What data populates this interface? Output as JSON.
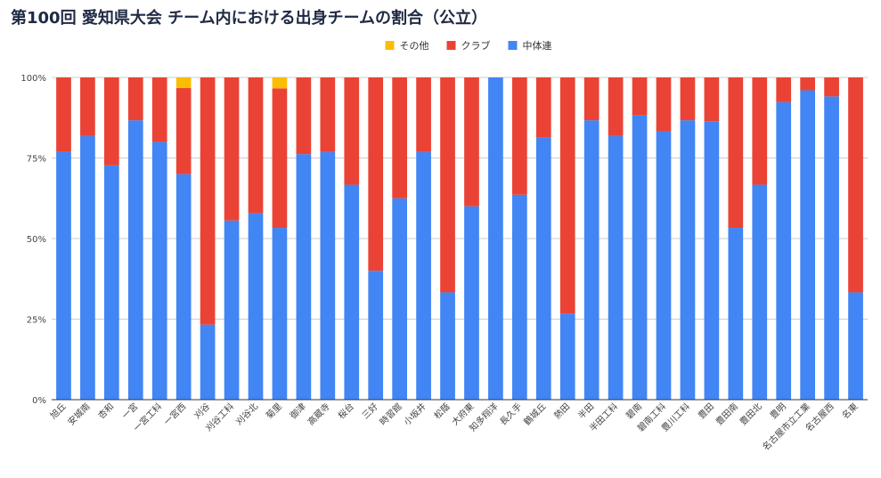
{
  "chart_data": {
    "type": "bar",
    "stacked": true,
    "normalized": true,
    "title": "第100回 愛知県大会 チーム内における出身チームの割合（公立）",
    "y_ticks": [
      "0%",
      "25%",
      "50%",
      "75%",
      "100%"
    ],
    "ylim": [
      0,
      100
    ],
    "grid": true,
    "legend_position": "top",
    "categories": [
      "旭丘",
      "安城南",
      "杏和",
      "一宮",
      "一宮工科",
      "一宮西",
      "刈谷",
      "刈谷工科",
      "刈谷北",
      "菊里",
      "御津",
      "高蔵寺",
      "桜台",
      "三好",
      "時習館",
      "小坂井",
      "松蔭",
      "大府東",
      "知多翔洋",
      "長久手",
      "鶴城丘",
      "熱田",
      "半田",
      "半田工科",
      "碧南",
      "碧南工科",
      "豊川工科",
      "豊田",
      "豊田南",
      "豊田北",
      "豊明",
      "名古屋市立工業",
      "名古屋西",
      "名東"
    ],
    "series": [
      {
        "name": "中体連",
        "color": "#4285f4",
        "values": [
          76.9,
          81.8,
          72.7,
          86.7,
          80.0,
          70.0,
          23.3,
          55.6,
          57.9,
          53.3,
          76.2,
          76.9,
          66.7,
          40.0,
          62.5,
          76.9,
          33.3,
          60.0,
          100,
          63.6,
          81.3,
          26.7,
          86.7,
          81.8,
          88.2,
          83.3,
          86.7,
          86.4,
          53.3,
          66.7,
          92.3,
          96.0,
          94.1,
          33.3
        ]
      },
      {
        "name": "クラブ",
        "color": "#ea4335",
        "values": [
          23.1,
          18.2,
          27.3,
          13.3,
          20.0,
          26.7,
          76.7,
          44.4,
          42.1,
          43.3,
          23.8,
          23.1,
          33.3,
          60.0,
          37.5,
          23.1,
          66.7,
          40.0,
          0,
          36.4,
          18.7,
          73.3,
          13.3,
          18.2,
          11.8,
          16.7,
          13.3,
          13.6,
          46.7,
          33.3,
          7.7,
          4.0,
          5.9,
          66.7
        ]
      },
      {
        "name": "その他",
        "color": "#fbbc04",
        "values": [
          0,
          0,
          0,
          0,
          0,
          3.3,
          0,
          0,
          0,
          3.4,
          0,
          0,
          0,
          0,
          0,
          0,
          0,
          0,
          0,
          0,
          0,
          0,
          0,
          0,
          0,
          0,
          0,
          0,
          0,
          0,
          0,
          0,
          0,
          0
        ]
      }
    ],
    "legend_order": [
      "その他",
      "クラブ",
      "中体連"
    ]
  }
}
